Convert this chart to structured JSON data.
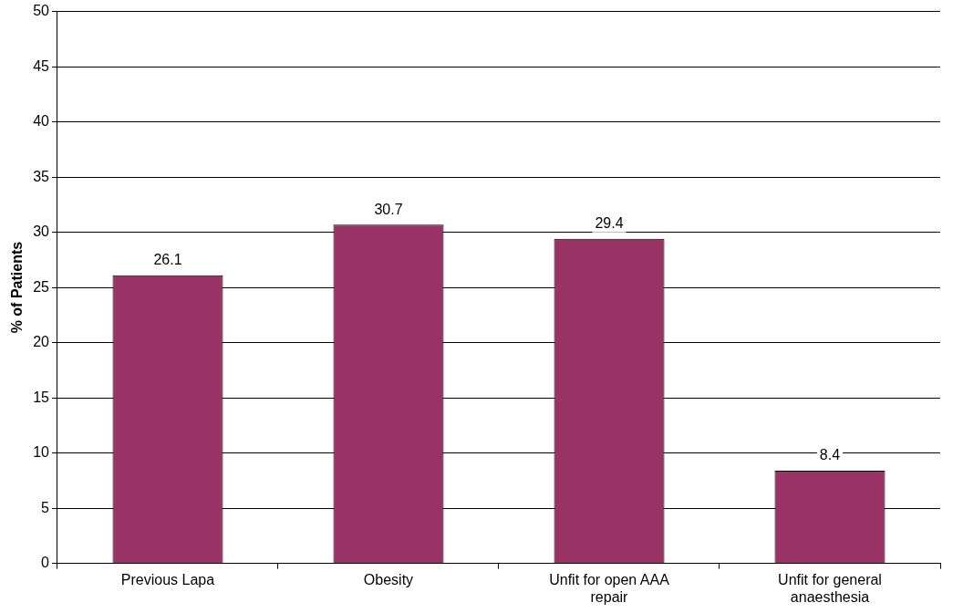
{
  "chart_data": {
    "type": "bar",
    "ylabel": "% of Patients",
    "categories": [
      "Previous Lapa",
      "Obesity",
      "Unfit for open AAA repair",
      "Unfit for general anaesthesia"
    ],
    "values": [
      26.1,
      30.7,
      29.4,
      8.4
    ],
    "color": "#993366",
    "ylim": [
      0,
      50
    ],
    "yticks": [
      0,
      5,
      10,
      15,
      20,
      25,
      30,
      35,
      40,
      45,
      50
    ],
    "grid": "y",
    "data_labels": true,
    "legend": false
  }
}
